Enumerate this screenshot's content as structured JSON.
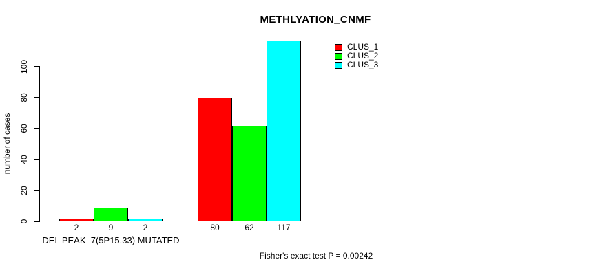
{
  "chart_data": {
    "type": "bar",
    "title": "METHLYATION_CNMF",
    "ylabel": "number of cases",
    "xlabel": "",
    "yticks": [
      0,
      20,
      40,
      60,
      80,
      100
    ],
    "ylim": [
      0,
      117
    ],
    "grid": false,
    "legend_position": "top-right",
    "series": [
      {
        "name": "CLUS_1",
        "color": "#ff0000"
      },
      {
        "name": "CLUS_2",
        "color": "#00ff00"
      },
      {
        "name": "CLUS_3",
        "color": "#00ffff"
      }
    ],
    "groups": [
      {
        "label": "DEL PEAK  7(5P15.33) MUTATED",
        "values": [
          2,
          9,
          2
        ]
      },
      {
        "label": "",
        "values": [
          80,
          62,
          117
        ]
      }
    ],
    "bar_value_labels": [
      "2",
      "9",
      "2",
      "80",
      "62",
      "117"
    ],
    "annotation": "Fisher's exact test P = 0.00242"
  },
  "colors": {
    "bar_border": "#000000",
    "axis": "#000000",
    "text": "#000000",
    "background": "#ffffff"
  }
}
